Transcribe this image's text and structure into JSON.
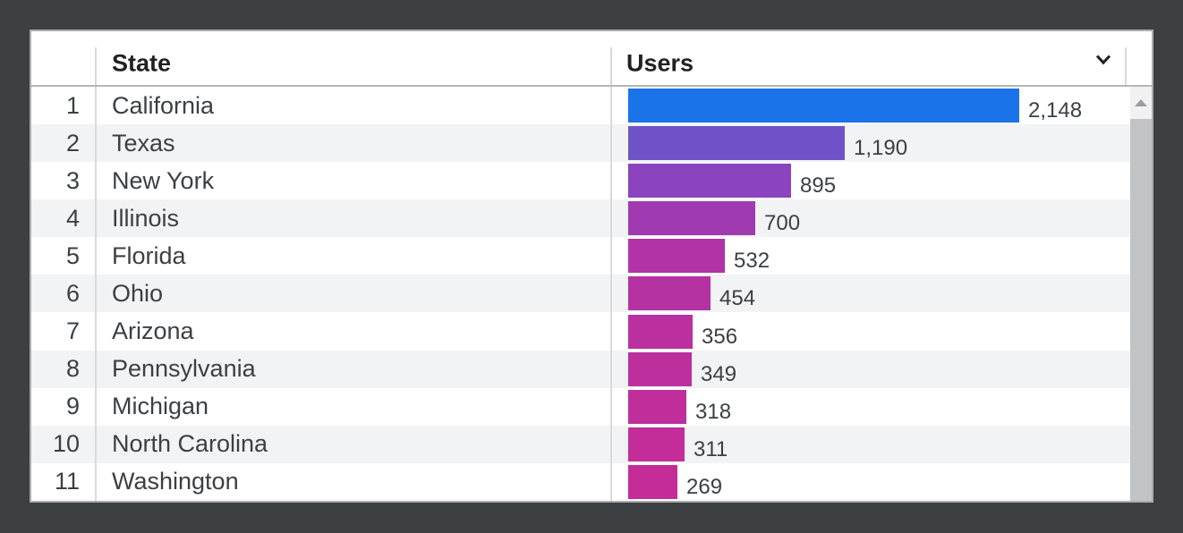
{
  "app": {
    "background_color": "#3c4043",
    "card_background": "#ffffff"
  },
  "table": {
    "header": {
      "state_label": "State",
      "users_label": "Users",
      "sort_icon": "chevron-down-icon"
    },
    "rows": [
      {
        "rank": "1",
        "state": "California",
        "users_display": "2,148",
        "users_value": 2148,
        "bar_color": "#1a73e8"
      },
      {
        "rank": "2",
        "state": "Texas",
        "users_display": "1,190",
        "users_value": 1190,
        "bar_color": "#6e52c6"
      },
      {
        "rank": "3",
        "state": "New York",
        "users_display": "895",
        "users_value": 895,
        "bar_color": "#8b44bd"
      },
      {
        "rank": "4",
        "state": "Illinois",
        "users_display": "700",
        "users_value": 700,
        "bar_color": "#a03ab1"
      },
      {
        "rank": "5",
        "state": "Florida",
        "users_display": "532",
        "users_value": 532,
        "bar_color": "#b233a6"
      },
      {
        "rank": "6",
        "state": "Ohio",
        "users_display": "454",
        "users_value": 454,
        "bar_color": "#b532a2"
      },
      {
        "rank": "7",
        "state": "Arizona",
        "users_display": "356",
        "users_value": 356,
        "bar_color": "#ba309f"
      },
      {
        "rank": "8",
        "state": "Pennsylvania",
        "users_display": "349",
        "users_value": 349,
        "bar_color": "#bd2f9d"
      },
      {
        "rank": "9",
        "state": "Michigan",
        "users_display": "318",
        "users_value": 318,
        "bar_color": "#c02e9b"
      },
      {
        "rank": "10",
        "state": "North Carolina",
        "users_display": "311",
        "users_value": 311,
        "bar_color": "#c22d9a"
      },
      {
        "rank": "11",
        "state": "Washington",
        "users_display": "269",
        "users_value": 269,
        "bar_color": "#c62c98"
      }
    ]
  },
  "scrollbar": {
    "up_icon": "triangle-up-icon"
  },
  "chart_data": {
    "type": "bar",
    "orientation": "horizontal",
    "title": "",
    "categories": [
      "California",
      "Texas",
      "New York",
      "Illinois",
      "Florida",
      "Ohio",
      "Arizona",
      "Pennsylvania",
      "Michigan",
      "North Carolina",
      "Washington"
    ],
    "values": [
      2148,
      1190,
      895,
      700,
      532,
      454,
      356,
      349,
      318,
      311,
      269
    ],
    "value_labels": [
      "2,148",
      "1,190",
      "895",
      "700",
      "532",
      "454",
      "356",
      "349",
      "318",
      "311",
      "269"
    ],
    "xlabel": "Users",
    "ylabel": "State",
    "xlim": [
      0,
      2148
    ],
    "bar_colors": [
      "#1a73e8",
      "#6e52c6",
      "#8b44bd",
      "#a03ab1",
      "#b233a6",
      "#b532a2",
      "#ba309f",
      "#bd2f9d",
      "#c02e9b",
      "#c22d9a",
      "#c62c98"
    ],
    "grid": false,
    "legend": false
  }
}
